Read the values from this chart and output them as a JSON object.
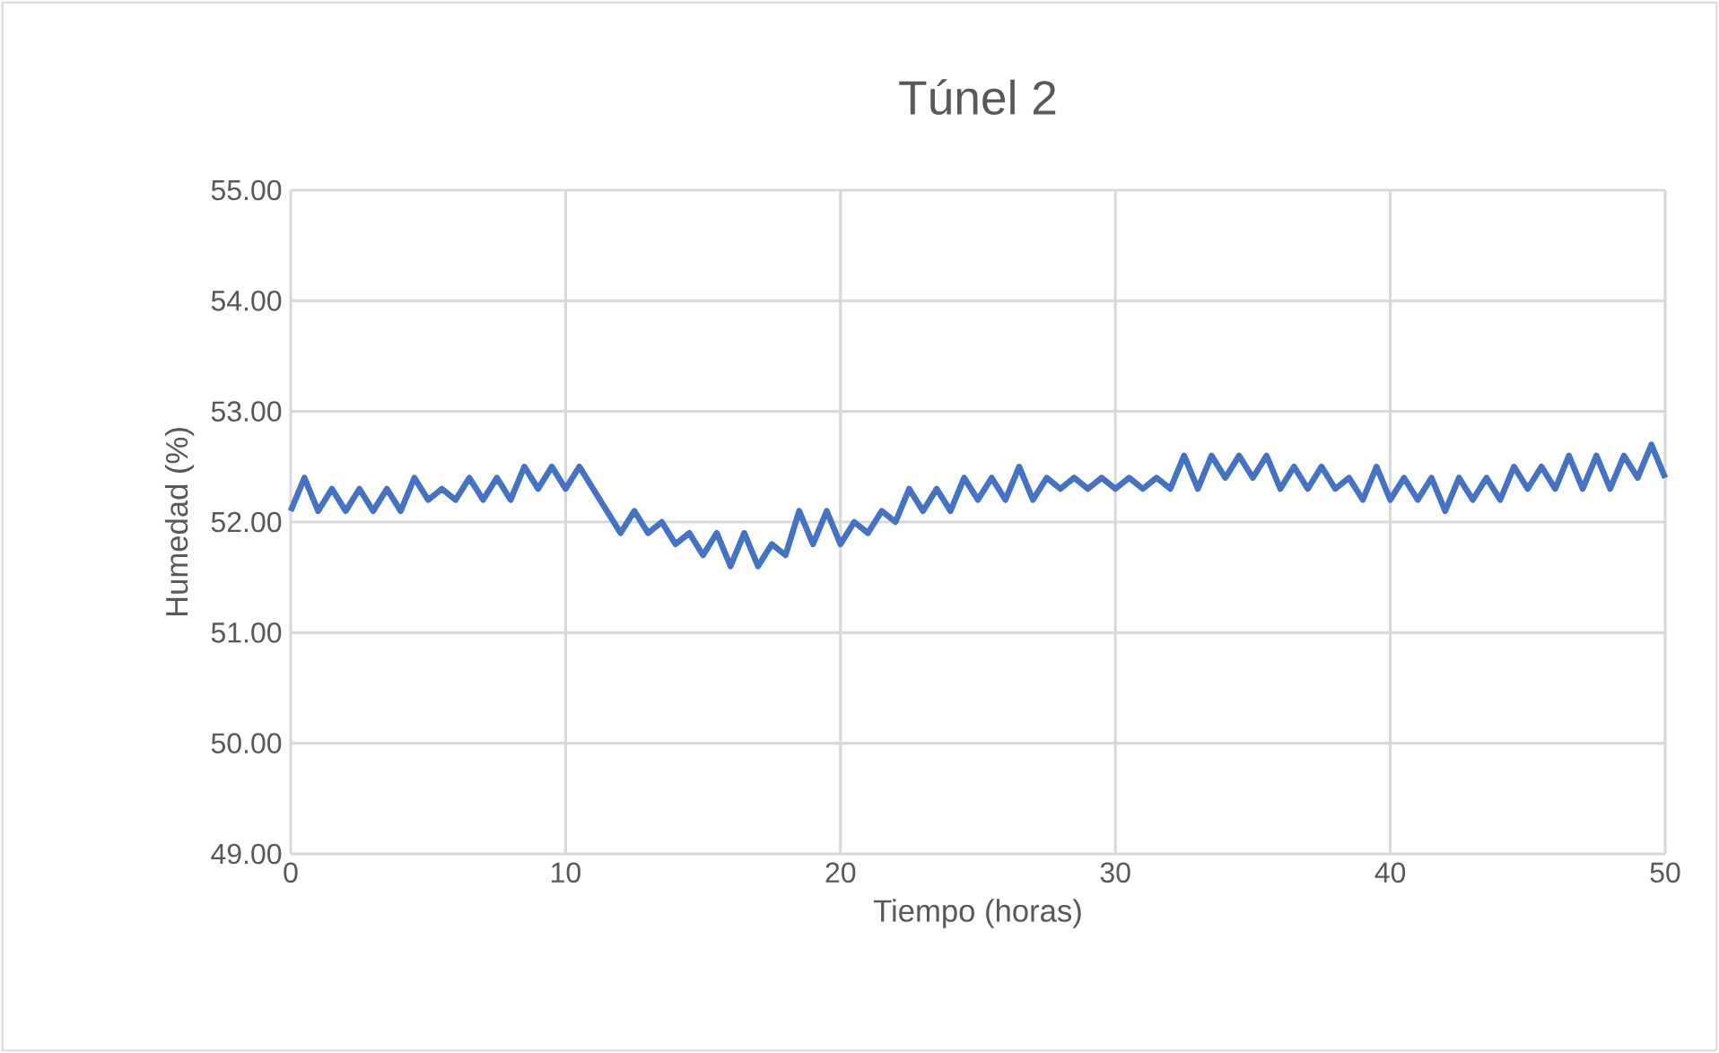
{
  "chart_data": {
    "type": "line",
    "title": "Túnel 2",
    "xlabel": "Tiempo (horas)",
    "ylabel": "Humedad (%)",
    "xlim": [
      0,
      50
    ],
    "xticks": [
      0,
      10,
      20,
      30,
      40,
      50
    ],
    "ylim": [
      49,
      55
    ],
    "yticks": [
      {
        "value": 49,
        "label": "49.00"
      },
      {
        "value": 50,
        "label": "50.00"
      },
      {
        "value": 51,
        "label": "51.00"
      },
      {
        "value": 52,
        "label": "52.00"
      },
      {
        "value": 53,
        "label": "53.00"
      },
      {
        "value": 54,
        "label": "54.00"
      },
      {
        "value": 55,
        "label": "55.00"
      }
    ],
    "grid": true,
    "marker": "none",
    "line_style": "solid",
    "series": [
      {
        "color": "#4472c4",
        "x": [
          0,
          0.5,
          1,
          1.5,
          2,
          2.5,
          3,
          3.5,
          4,
          4.5,
          5,
          5.5,
          6,
          6.5,
          7,
          7.5,
          8,
          8.5,
          9,
          9.5,
          10,
          10.5,
          11,
          11.5,
          12,
          12.5,
          13,
          13.5,
          14,
          14.5,
          15,
          15.5,
          16,
          16.5,
          17,
          17.5,
          18,
          18.5,
          19,
          19.5,
          20,
          20.5,
          21,
          21.5,
          22,
          22.5,
          23,
          23.5,
          24,
          24.5,
          25,
          25.5,
          26,
          26.5,
          27,
          27.5,
          28,
          28.5,
          29,
          29.5,
          30,
          30.5,
          31,
          31.5,
          32,
          32.5,
          33,
          33.5,
          34,
          34.5,
          35,
          35.5,
          36,
          36.5,
          37,
          37.5,
          38,
          38.5,
          39,
          39.5,
          40,
          40.5,
          41,
          41.5,
          42,
          42.5,
          43,
          43.5,
          44,
          44.5,
          45,
          45.5,
          46,
          46.5,
          47,
          47.5,
          48,
          48.5,
          49,
          49.5,
          50
        ],
        "values": [
          52.1,
          52.4,
          52.1,
          52.3,
          52.1,
          52.3,
          52.1,
          52.3,
          52.1,
          52.4,
          52.2,
          52.3,
          52.2,
          52.4,
          52.2,
          52.4,
          52.2,
          52.5,
          52.3,
          52.5,
          52.3,
          52.5,
          52.3,
          52.1,
          51.9,
          52.1,
          51.9,
          52.0,
          51.8,
          51.9,
          51.7,
          51.9,
          51.6,
          51.9,
          51.6,
          51.8,
          51.7,
          52.1,
          51.8,
          52.1,
          51.8,
          52.0,
          51.9,
          52.1,
          52.0,
          52.3,
          52.1,
          52.3,
          52.1,
          52.4,
          52.2,
          52.4,
          52.2,
          52.5,
          52.2,
          52.4,
          52.3,
          52.4,
          52.3,
          52.4,
          52.3,
          52.4,
          52.3,
          52.4,
          52.3,
          52.6,
          52.3,
          52.6,
          52.4,
          52.6,
          52.4,
          52.6,
          52.3,
          52.5,
          52.3,
          52.5,
          52.3,
          52.4,
          52.2,
          52.5,
          52.2,
          52.4,
          52.2,
          52.4,
          52.1,
          52.4,
          52.2,
          52.4,
          52.2,
          52.5,
          52.3,
          52.5,
          52.3,
          52.6,
          52.3,
          52.6,
          52.3,
          52.6,
          52.4,
          52.7,
          52.4
        ]
      }
    ]
  }
}
